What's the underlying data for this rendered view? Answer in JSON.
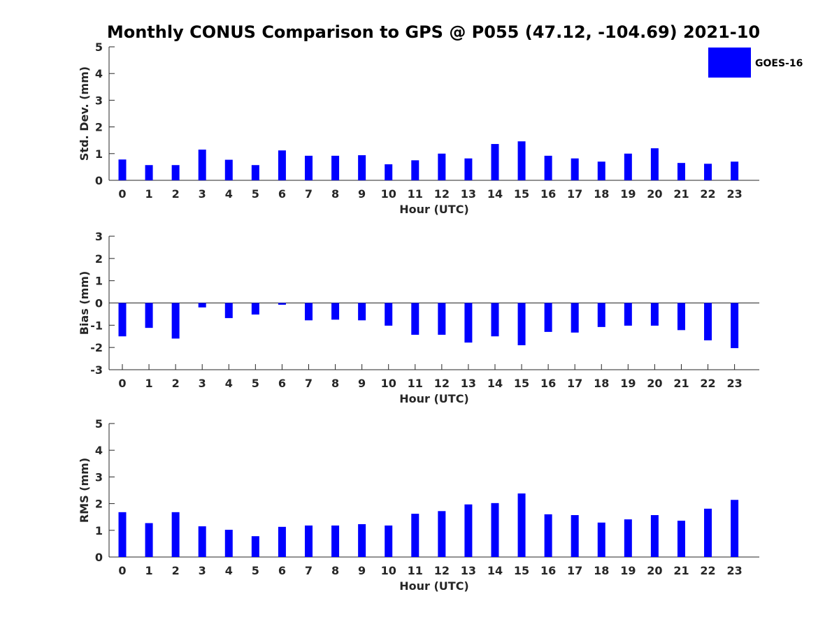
{
  "title": "Monthly CONUS Comparison to GPS @ P055 (47.12, -104.69) 2021-10",
  "legend": {
    "label": "GOES-16",
    "placement": "top-right"
  },
  "colors": {
    "bar": "#0000ff",
    "axis": "#262626",
    "background": "#ffffff"
  },
  "chart_data": [
    {
      "type": "bar",
      "title": "Monthly CONUS Comparison to GPS @ P055 (47.12, -104.69) 2021-10",
      "xlabel": "Hour (UTC)",
      "ylabel": "Std. Dev. (mm)",
      "categories": [
        "0",
        "1",
        "2",
        "3",
        "4",
        "5",
        "6",
        "7",
        "8",
        "9",
        "10",
        "11",
        "12",
        "13",
        "14",
        "15",
        "16",
        "17",
        "18",
        "19",
        "20",
        "21",
        "22",
        "23"
      ],
      "ylim": [
        0,
        5
      ],
      "yticks": [
        0,
        1,
        2,
        3,
        4,
        5
      ],
      "grid": false,
      "series": [
        {
          "name": "GOES-16",
          "values": [
            0.78,
            0.57,
            0.57,
            1.15,
            0.77,
            0.57,
            1.12,
            0.92,
            0.92,
            0.94,
            0.6,
            0.75,
            1.0,
            0.82,
            1.36,
            1.46,
            0.92,
            0.82,
            0.7,
            1.0,
            1.2,
            0.65,
            0.62,
            0.7
          ]
        }
      ]
    },
    {
      "type": "bar",
      "title": "",
      "xlabel": "Hour (UTC)",
      "ylabel": "Bias (mm)",
      "categories": [
        "0",
        "1",
        "2",
        "3",
        "4",
        "5",
        "6",
        "7",
        "8",
        "9",
        "10",
        "11",
        "12",
        "13",
        "14",
        "15",
        "16",
        "17",
        "18",
        "19",
        "20",
        "21",
        "22",
        "23"
      ],
      "ylim": [
        -3,
        3
      ],
      "yticks": [
        -3,
        -2,
        -1,
        0,
        1,
        2,
        3
      ],
      "grid": false,
      "series": [
        {
          "name": "GOES-16",
          "values": [
            -1.5,
            -1.12,
            -1.6,
            -0.2,
            -0.68,
            -0.52,
            -0.08,
            -0.78,
            -0.75,
            -0.78,
            -1.02,
            -1.43,
            -1.43,
            -1.78,
            -1.5,
            -1.9,
            -1.3,
            -1.33,
            -1.08,
            -1.02,
            -1.02,
            -1.22,
            -1.68,
            -2.03
          ]
        }
      ]
    },
    {
      "type": "bar",
      "title": "",
      "xlabel": "Hour (UTC)",
      "ylabel": "RMS (mm)",
      "categories": [
        "0",
        "1",
        "2",
        "3",
        "4",
        "5",
        "6",
        "7",
        "8",
        "9",
        "10",
        "11",
        "12",
        "13",
        "14",
        "15",
        "16",
        "17",
        "18",
        "19",
        "20",
        "21",
        "22",
        "23"
      ],
      "ylim": [
        0,
        5
      ],
      "yticks": [
        0,
        1,
        2,
        3,
        4,
        5
      ],
      "grid": false,
      "series": [
        {
          "name": "GOES-16",
          "values": [
            1.68,
            1.27,
            1.68,
            1.15,
            1.02,
            0.78,
            1.13,
            1.18,
            1.18,
            1.23,
            1.18,
            1.62,
            1.72,
            1.97,
            2.02,
            2.38,
            1.6,
            1.57,
            1.29,
            1.41,
            1.57,
            1.36,
            1.81,
            2.14
          ]
        }
      ]
    }
  ]
}
